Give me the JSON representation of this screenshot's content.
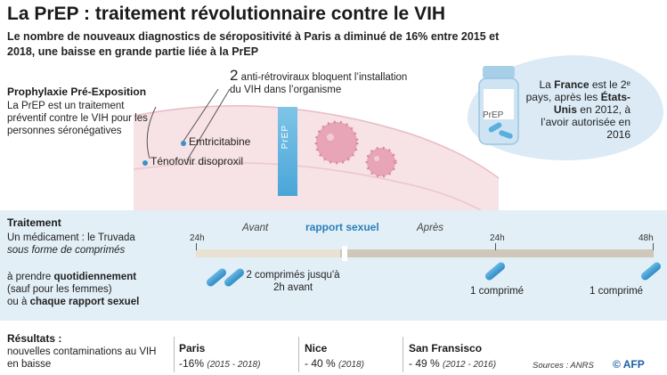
{
  "title": "La PrEP : traitement révolutionnaire contre le VIH",
  "subtitle": "Le nombre de nouveaux diagnostics de séropositivité à Paris a diminué de 16% entre 2015 et 2018, une baisse en grande partie liée à la PrEP",
  "prophylaxie": {
    "heading": "Prophylaxie Pré-Exposition",
    "text": "La PrEP est un traitement préventif contre le VIH pour les personnes séronégatives"
  },
  "arv": {
    "number": "2",
    "text": "anti-rétroviraux bloquent l’installation du VIH dans l’organisme"
  },
  "drugs": [
    "Emtricitabine",
    "Ténofovir disoproxil"
  ],
  "prep_label": "PrEP",
  "bottle_label": "PrEP",
  "france": {
    "p1": "La",
    "strong1": "France",
    "p2": "est le 2ᵉ pays, après les",
    "strong2": "États-Unis",
    "p3": "en 2012, à l’avoir autorisée en 2016"
  },
  "traitement": {
    "heading": "Traitement",
    "line1": "Un médicament : le Truvada",
    "line2": "sous forme de comprimés",
    "line3a": "à prendre",
    "line3b": "quotidiennement",
    "line4": "(sauf pour les femmes)",
    "line5a": "ou à",
    "line5b": "chaque rapport sexuel"
  },
  "timeline": {
    "ticks": [
      "24h",
      "24h",
      "48h"
    ],
    "avant": "Avant",
    "apres": "Après",
    "rapport": "rapport sexuel",
    "pill1": "2 comprimés jusqu'à 2h avant",
    "pill2": "1 comprimé",
    "pill3": "1 comprimé"
  },
  "resultats": {
    "heading": "Résultats :",
    "text": "nouvelles contaminations au VIH en baisse",
    "cities": [
      {
        "name": "Paris",
        "value": "-16%",
        "period": "(2015 - 2018)"
      },
      {
        "name": "Nice",
        "value": "- 40 %",
        "period": "(2018)"
      },
      {
        "name": "San Fransisco",
        "value": "- 49 %",
        "period": "(2012 - 2016)"
      }
    ]
  },
  "sources": "Sources : ANRS",
  "credit": "© AFP",
  "colors": {
    "accent": "#2b7fb8",
    "panel": "#e2eff7",
    "virus": "#d98aa0"
  }
}
